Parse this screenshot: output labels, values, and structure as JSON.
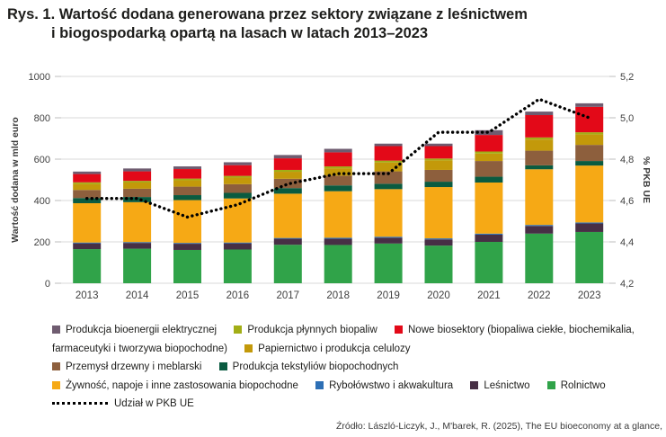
{
  "title": {
    "line1": "Rys. 1. Wartość dodana generowana przez sektory związane z leśnictwem",
    "line2": "i biogospodarką opartą na lasach w latach 2013–2023"
  },
  "source": "Źródło: László-Liczyk, J., M'barek, R. (2025), The EU bioeconomy at a glance,",
  "chart_data": {
    "type": "bar",
    "subtype": "stacked-bars-with-line",
    "title": "Wartość dodana generowana przez sektory związane z leśnictwem i biogospodarką opartą na lasach w latach 2013–2023",
    "categories": [
      "2013",
      "2014",
      "2015",
      "2016",
      "2017",
      "2018",
      "2019",
      "2020",
      "2021",
      "2022",
      "2023"
    ],
    "ylabel_left": "Wartość dodana w mld euro",
    "ylabel_right": "% PKB UE",
    "ylim_left": [
      0,
      1000
    ],
    "yticks_left": [
      "0",
      "200",
      "400",
      "600",
      "800",
      "1000"
    ],
    "ylim_right": [
      4.2,
      5.2
    ],
    "yticks_right": [
      "4,2",
      "4,4",
      "4,6",
      "4,8",
      "5,0",
      "5,2"
    ],
    "grid": true,
    "legend_position": "bottom",
    "grid_color": "#d8d8d8",
    "series": [
      {
        "id": "rolnictwo",
        "name": "Rolnictwo",
        "color": "#30A349",
        "values": [
          165,
          167,
          161,
          163,
          186,
          185,
          192,
          182,
          200,
          240,
          248
        ]
      },
      {
        "id": "lesnictwo",
        "name": "Leśnictwo",
        "color": "#472F45",
        "values": [
          28,
          28,
          30,
          30,
          29,
          30,
          28,
          30,
          35,
          37,
          41
        ]
      },
      {
        "id": "rybolowstwo",
        "name": "Rybołówstwo i akwakultura",
        "color": "#2D6FB5",
        "values": [
          4,
          4,
          4,
          4,
          4,
          5,
          5,
          5,
          5,
          5,
          5
        ]
      },
      {
        "id": "zywnosc",
        "name": "Żywność, napoje i inne zastosowania biopochodne",
        "color": "#F6A915",
        "values": [
          190,
          193,
          207,
          213,
          214,
          225,
          230,
          248,
          247,
          269,
          275
        ]
      },
      {
        "id": "tekstylia",
        "name": "Produkcja tekstyliów biopochodnych",
        "color": "#0A5B40",
        "values": [
          25,
          25,
          24,
          27,
          27,
          28,
          26,
          26,
          28,
          19,
          22
        ]
      },
      {
        "id": "drzewny",
        "name": "Przemysł drzewny i meblarski",
        "color": "#8D5F3D",
        "values": [
          39,
          40,
          41,
          42,
          45,
          47,
          60,
          57,
          76,
          71,
          78
        ]
      },
      {
        "id": "papiernictwo",
        "name": "Papiernictwo i produkcja celulozy",
        "color": "#C3990A",
        "values": [
          29,
          30,
          31,
          32,
          34,
          36,
          43,
          46,
          36,
          54,
          51
        ]
      },
      {
        "id": "biopaliwa",
        "name": "Produkcja płynnych biopaliw",
        "color": "#A2AE16",
        "values": [
          8,
          8,
          8,
          8,
          9,
          9,
          9,
          9,
          10,
          10,
          10
        ]
      },
      {
        "id": "nowe-biosektory",
        "name": "Nowe biosektory (biopaliwa ciekłe, biochemikalia, farmaceutyki i tworzywa biopochodne)",
        "color": "#E30918",
        "values": [
          40,
          46,
          46,
          52,
          56,
          68,
          70,
          60,
          80,
          108,
          123
        ]
      },
      {
        "id": "bioenergia",
        "name": "Produkcja bioenergii elektrycznej",
        "color": "#6F5C70",
        "values": [
          12,
          14,
          13,
          14,
          16,
          17,
          12,
          12,
          23,
          17,
          17
        ]
      }
    ],
    "bar_totals": [
      540,
      555,
      565,
      585,
      620,
      650,
      675,
      675,
      740,
      830,
      870
    ],
    "line_series": {
      "id": "udzial-pkb",
      "name": "Udział w PKB UE",
      "color": "#000000",
      "style": "dotted",
      "values": [
        4.61,
        4.61,
        4.52,
        4.58,
        4.68,
        4.73,
        4.73,
        4.93,
        4.93,
        5.09,
        5.0
      ]
    }
  }
}
